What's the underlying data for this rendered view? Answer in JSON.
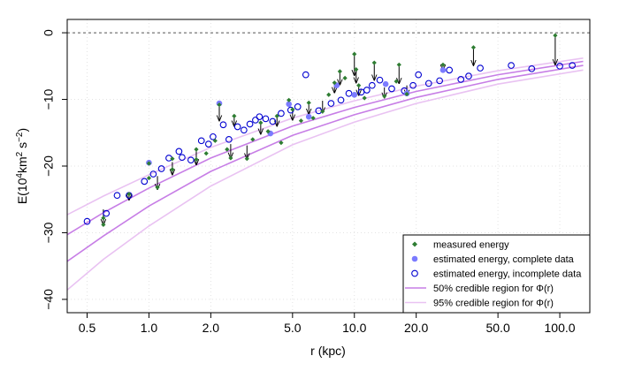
{
  "chart_data": {
    "type": "scatter",
    "xlabel": "r (kpc)",
    "ylabel_parts": {
      "base": "E(10",
      "e1": "4",
      "mid": "km",
      "e2": "2",
      "mid2": " s",
      "e3": "−2",
      "end": ")"
    },
    "x_scale": "log",
    "xlim": [
      0.4,
      140
    ],
    "ylim": [
      -42,
      2
    ],
    "x_ticks": [
      0.5,
      1.0,
      2.0,
      5.0,
      10.0,
      20.0,
      50.0,
      100.0
    ],
    "x_tick_labels": [
      "0.5",
      "1.0",
      "2.0",
      "5.0",
      "10.0",
      "20.0",
      "50.0",
      "100.0"
    ],
    "y_ticks": [
      0,
      -10,
      -20,
      -30,
      -40
    ],
    "y_tick_labels": [
      "0",
      "−10",
      "−20",
      "−30",
      "−40"
    ],
    "reference_line": {
      "y": 0,
      "style": "dashed"
    },
    "grid": "dotted",
    "legend_position": "bottom-right",
    "colors": {
      "measured": "#2e7d32",
      "estimated_complete": "#7b7bff",
      "estimated_incomplete": "#0000d0",
      "region50": "#c77ee6",
      "region95": "#e9c2f2"
    },
    "legend": [
      {
        "label": "measured energy",
        "key": "measured"
      },
      {
        "label": "estimated energy, complete data",
        "key": "estimated_complete"
      },
      {
        "label": "estimated energy, incomplete data",
        "key": "estimated_incomplete"
      },
      {
        "label": "50% credible region for Φ(r)",
        "key": "region50"
      },
      {
        "label": "95% credible region for Φ(r)",
        "key": "region95"
      }
    ],
    "series": [
      {
        "key": "region95_upper",
        "x": [
          0.4,
          0.6,
          1.0,
          2.0,
          5.0,
          10.0,
          20.0,
          50.0,
          130.0
        ],
        "y": [
          -27.3,
          -24.5,
          -21.3,
          -17.2,
          -12.8,
          -10.2,
          -8.0,
          -5.7,
          -3.8
        ]
      },
      {
        "key": "region50_upper",
        "x": [
          0.4,
          0.6,
          1.0,
          2.0,
          5.0,
          10.0,
          20.0,
          50.0,
          130.0
        ],
        "y": [
          -30.3,
          -27.0,
          -23.3,
          -18.8,
          -14.0,
          -11.2,
          -8.8,
          -6.3,
          -4.3
        ]
      },
      {
        "key": "region50_lower",
        "x": [
          0.4,
          0.6,
          1.0,
          2.0,
          5.0,
          10.0,
          20.0,
          50.0,
          130.0
        ],
        "y": [
          -34.3,
          -30.5,
          -26.0,
          -20.8,
          -15.4,
          -12.3,
          -9.7,
          -7.0,
          -4.9
        ]
      },
      {
        "key": "region95_lower",
        "x": [
          0.4,
          0.6,
          1.0,
          2.0,
          5.0,
          10.0,
          20.0,
          50.0,
          130.0
        ],
        "y": [
          -38.6,
          -34.0,
          -29.0,
          -23.0,
          -16.8,
          -13.4,
          -10.6,
          -7.7,
          -5.6
        ]
      }
    ],
    "measured": [
      [
        0.6,
        -28.8
      ],
      [
        0.6,
        -27.8
      ],
      [
        0.8,
        -24.2
      ],
      [
        1.0,
        -21.8
      ],
      [
        1.0,
        -19.6
      ],
      [
        1.1,
        -23.2
      ],
      [
        1.3,
        -20.5
      ],
      [
        1.3,
        -18.9
      ],
      [
        1.7,
        -19.0
      ],
      [
        1.7,
        -17.5
      ],
      [
        1.9,
        -18.1
      ],
      [
        2.1,
        -16.2
      ],
      [
        2.2,
        -10.8
      ],
      [
        2.4,
        -17.5
      ],
      [
        2.5,
        -18.8
      ],
      [
        2.6,
        -12.5
      ],
      [
        3.0,
        -18.9
      ],
      [
        3.2,
        -16.0
      ],
      [
        3.5,
        -13.5
      ],
      [
        3.8,
        -14.8
      ],
      [
        4.2,
        -12.5
      ],
      [
        4.4,
        -16.5
      ],
      [
        4.8,
        -10.1
      ],
      [
        5.0,
        -11.5
      ],
      [
        5.5,
        -13.2
      ],
      [
        6.0,
        -10.5
      ],
      [
        6.3,
        -12.8
      ],
      [
        7.0,
        -11.8
      ],
      [
        7.5,
        -9.3
      ],
      [
        8.0,
        -7.5
      ],
      [
        8.5,
        -5.8
      ],
      [
        9.0,
        -6.8
      ],
      [
        10.0,
        -3.2
      ],
      [
        10.2,
        -5.5
      ],
      [
        10.5,
        -7.9
      ],
      [
        11.2,
        -9.8
      ],
      [
        12.5,
        -4.5
      ],
      [
        14.0,
        -9.5
      ],
      [
        16.0,
        -7.3
      ],
      [
        16.5,
        -4.8
      ],
      [
        18.0,
        -9.2
      ],
      [
        27.0,
        -4.8
      ],
      [
        38.0,
        -2.2
      ],
      [
        95.0,
        -0.4
      ]
    ],
    "estimated_complete": [
      [
        1.0,
        -19.5
      ],
      [
        2.2,
        -10.6
      ],
      [
        3.9,
        -15.1
      ],
      [
        4.8,
        -10.7
      ],
      [
        6.0,
        -12.6
      ],
      [
        8.2,
        -7.9
      ],
      [
        10.0,
        -9.3
      ],
      [
        14.2,
        -7.7
      ],
      [
        18.0,
        -9.1
      ],
      [
        27.0,
        -5.6
      ]
    ],
    "estimated_incomplete": [
      [
        0.5,
        -28.3
      ],
      [
        0.62,
        -27.1
      ],
      [
        0.7,
        -24.4
      ],
      [
        0.8,
        -24.4
      ],
      [
        0.95,
        -22.3
      ],
      [
        1.05,
        -21.2
      ],
      [
        1.15,
        -20.4
      ],
      [
        1.25,
        -18.8
      ],
      [
        1.4,
        -17.8
      ],
      [
        1.45,
        -18.7
      ],
      [
        1.6,
        -19.1
      ],
      [
        1.8,
        -16.2
      ],
      [
        1.95,
        -16.7
      ],
      [
        2.05,
        -15.6
      ],
      [
        2.3,
        -13.8
      ],
      [
        2.45,
        -16.0
      ],
      [
        2.7,
        -14.1
      ],
      [
        2.9,
        -14.6
      ],
      [
        3.1,
        -13.7
      ],
      [
        3.3,
        -13.1
      ],
      [
        3.45,
        -12.6
      ],
      [
        3.7,
        -12.9
      ],
      [
        4.0,
        -13.3
      ],
      [
        4.4,
        -12.1
      ],
      [
        4.9,
        -11.6
      ],
      [
        5.3,
        -11.1
      ],
      [
        5.8,
        -6.3
      ],
      [
        6.7,
        -11.7
      ],
      [
        7.7,
        -10.6
      ],
      [
        8.6,
        -10.1
      ],
      [
        9.4,
        -9.1
      ],
      [
        10.8,
        -8.9
      ],
      [
        11.5,
        -8.6
      ],
      [
        12.2,
        -7.9
      ],
      [
        13.3,
        -7.1
      ],
      [
        15.2,
        -8.4
      ],
      [
        17.5,
        -8.7
      ],
      [
        19.3,
        -7.9
      ],
      [
        20.5,
        -6.3
      ],
      [
        23.0,
        -7.6
      ],
      [
        26.0,
        -7.2
      ],
      [
        29.0,
        -5.6
      ],
      [
        33.0,
        -7.0
      ],
      [
        36.0,
        -6.5
      ],
      [
        41.0,
        -5.3
      ],
      [
        58.0,
        -4.9
      ],
      [
        73.0,
        -5.4
      ],
      [
        100.0,
        -5.0
      ],
      [
        115.0,
        -4.9
      ]
    ],
    "arrows": [
      [
        0.6,
        -26.5,
        -28.8
      ],
      [
        0.8,
        -24.2,
        -25.1
      ],
      [
        1.1,
        -21.5,
        -23.5
      ],
      [
        1.3,
        -19.4,
        -21.3
      ],
      [
        1.7,
        -17.5,
        -19.8
      ],
      [
        2.2,
        -10.8,
        -13.2
      ],
      [
        2.5,
        -16.7,
        -18.8
      ],
      [
        2.6,
        -12.5,
        -14.0
      ],
      [
        3.0,
        -16.9,
        -18.9
      ],
      [
        3.5,
        -13.5,
        -15.2
      ],
      [
        4.2,
        -12.5,
        -14.0
      ],
      [
        5.0,
        -11.5,
        -13.1
      ],
      [
        6.0,
        -10.5,
        -12.2
      ],
      [
        7.0,
        -10.2,
        -12.0
      ],
      [
        8.0,
        -7.5,
        -9.0
      ],
      [
        8.5,
        -5.8,
        -7.8
      ],
      [
        10.0,
        -3.2,
        -6.4
      ],
      [
        10.2,
        -5.5,
        -7.5
      ],
      [
        10.5,
        -7.9,
        -9.4
      ],
      [
        12.5,
        -4.5,
        -7.1
      ],
      [
        14.0,
        -8.2,
        -9.8
      ],
      [
        16.5,
        -4.8,
        -7.6
      ],
      [
        18.0,
        -7.9,
        -9.4
      ],
      [
        27.0,
        -4.8,
        -5.6
      ],
      [
        38.0,
        -2.2,
        -4.9
      ],
      [
        95.0,
        -0.4,
        -4.8
      ]
    ]
  }
}
